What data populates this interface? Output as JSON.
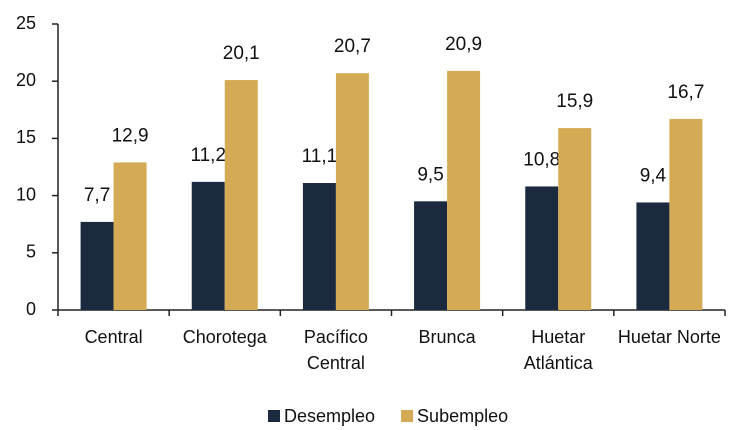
{
  "chart_data": {
    "type": "bar",
    "categories": [
      [
        "Central"
      ],
      [
        "Chorotega"
      ],
      [
        "Pacífico",
        "Central"
      ],
      [
        "Brunca"
      ],
      [
        "Huetar",
        "Atlántica"
      ],
      [
        "Huetar Norte"
      ]
    ],
    "series": [
      {
        "name": "Desempleo",
        "color": "#1c2a3f",
        "values": [
          7.7,
          11.2,
          11.1,
          9.5,
          10.8,
          9.4
        ],
        "value_labels": [
          "7,7",
          "11,2",
          "11,1",
          "9,5",
          "10,8",
          "9,4"
        ]
      },
      {
        "name": "Subempleo",
        "color": "#d4aa55",
        "values": [
          12.9,
          20.1,
          20.7,
          20.9,
          15.9,
          16.7
        ],
        "value_labels": [
          "12,9",
          "20,1",
          "20,7",
          "20,9",
          "15,9",
          "16,7"
        ]
      }
    ],
    "ylim": [
      0,
      25
    ],
    "yticks": [
      0,
      5,
      10,
      15,
      20,
      25
    ],
    "legend": "bottom"
  }
}
